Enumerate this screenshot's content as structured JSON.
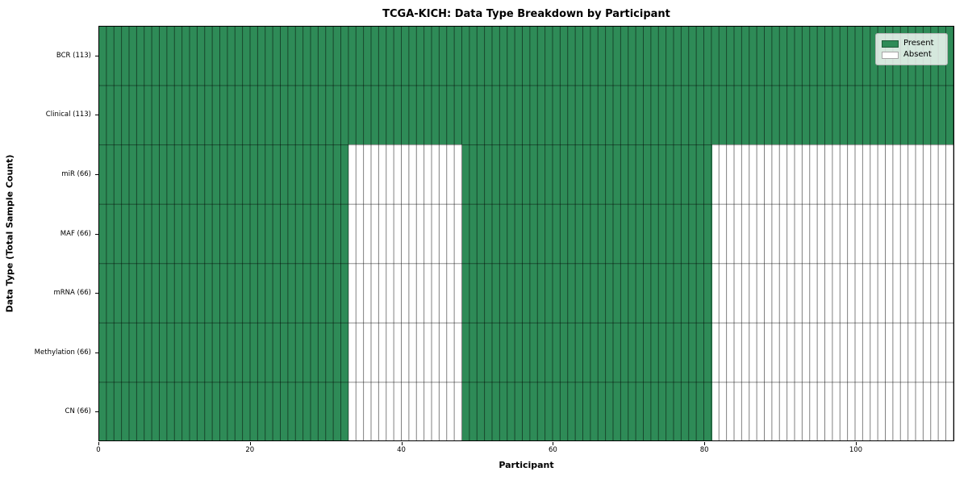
{
  "chart_data": {
    "type": "heatmap",
    "title": "TCGA-KICH: Data Type Breakdown by Participant",
    "xlabel": "Participant",
    "ylabel": "Data Type (Total Sample Count)",
    "xlim": [
      0,
      113
    ],
    "n_participants": 113,
    "x_ticks": [
      "0",
      "20",
      "40",
      "60",
      "80",
      "100"
    ],
    "x_tick_values": [
      0,
      20,
      40,
      60,
      80,
      100
    ],
    "legend_position": "upper right",
    "grid": "per-cell edges",
    "rows": [
      {
        "label": "BCR (113)",
        "total": 113,
        "present_ranges": [
          [
            0,
            113
          ]
        ]
      },
      {
        "label": "Clinical (113)",
        "total": 113,
        "present_ranges": [
          [
            0,
            113
          ]
        ]
      },
      {
        "label": "miR (66)",
        "total": 66,
        "present_ranges": [
          [
            0,
            33
          ],
          [
            48,
            81
          ]
        ]
      },
      {
        "label": "MAF (66)",
        "total": 66,
        "present_ranges": [
          [
            0,
            33
          ],
          [
            48,
            81
          ]
        ]
      },
      {
        "label": "mRNA (66)",
        "total": 66,
        "present_ranges": [
          [
            0,
            33
          ],
          [
            48,
            81
          ]
        ]
      },
      {
        "label": "Methylation (66)",
        "total": 66,
        "present_ranges": [
          [
            0,
            33
          ],
          [
            48,
            81
          ]
        ]
      },
      {
        "label": "CN (66)",
        "total": 66,
        "present_ranges": [
          [
            0,
            33
          ],
          [
            48,
            81
          ]
        ]
      }
    ],
    "legend": [
      {
        "label": "Present",
        "color": "#2e8b57"
      },
      {
        "label": "Absent",
        "color": "#ffffff"
      }
    ],
    "colors": {
      "present": "#2e8b57",
      "absent": "#ffffff",
      "cell_edge": "rgba(0,0,0,0.5)",
      "spine": "#000000",
      "legend_border": "#b4b4b4"
    }
  }
}
